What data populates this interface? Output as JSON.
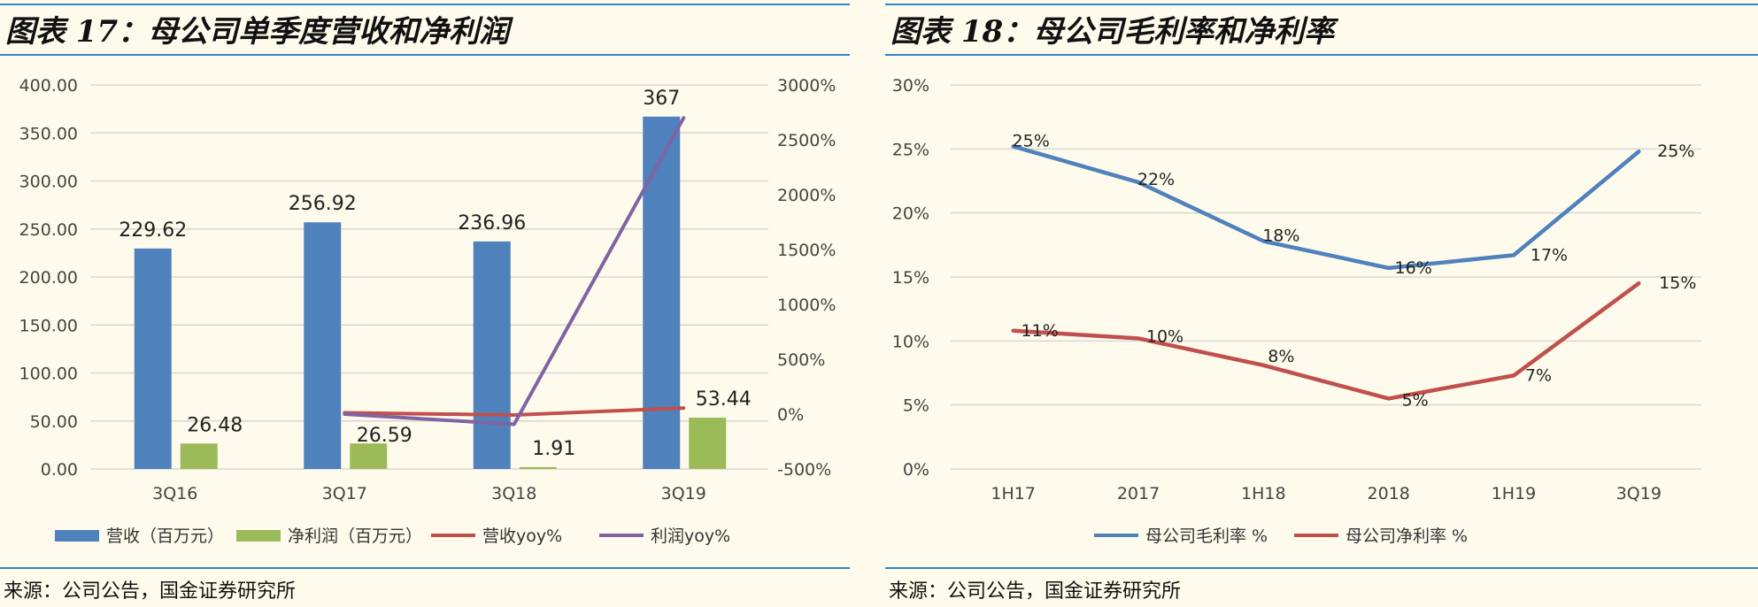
{
  "chart_data": [
    {
      "type": "bar",
      "title": "图表 17：母公司单季度营收和净利润",
      "source": "来源：公司公告，国金证券研究所",
      "categories": [
        "3Q16",
        "3Q17",
        "3Q18",
        "3Q19"
      ],
      "y_left": {
        "min": 0,
        "max": 400,
        "step": 50,
        "ticks": [
          "0.00",
          "50.00",
          "100.00",
          "150.00",
          "200.00",
          "250.00",
          "300.00",
          "350.00",
          "400.00"
        ]
      },
      "y_right": {
        "min": -500,
        "max": 3000,
        "step": 500,
        "ticks": [
          "-500%",
          "0%",
          "500%",
          "1000%",
          "1500%",
          "2000%",
          "2500%",
          "3000%"
        ]
      },
      "grid": true,
      "legend_position": "bottom",
      "series": [
        {
          "name": "营收（百万元）",
          "type": "bar",
          "axis": "left",
          "color": "#4f81bd",
          "values": [
            229.62,
            256.92,
            236.96,
            367
          ],
          "labels": [
            "229.62",
            "256.92",
            "236.96",
            "367"
          ]
        },
        {
          "name": "净利润（百万元）",
          "type": "bar",
          "axis": "left",
          "color": "#9bbb59",
          "values": [
            26.48,
            26.59,
            1.91,
            53.44
          ],
          "labels": [
            "26.48",
            "26.59",
            "1.91",
            "53.44"
          ]
        },
        {
          "name": "营收yoy%",
          "type": "line",
          "axis": "right",
          "color": "#c0504d",
          "values": [
            null,
            12,
            -8,
            55
          ]
        },
        {
          "name": "利润yoy%",
          "type": "line",
          "axis": "right",
          "color": "#8064a2",
          "values": [
            null,
            0.4,
            -93,
            2700
          ]
        }
      ]
    },
    {
      "type": "line",
      "title": "图表 18：母公司毛利率和净利率",
      "source": "来源：公司公告，国金证券研究所",
      "categories": [
        "1H17",
        "2017",
        "1H18",
        "2018",
        "1H19",
        "3Q19"
      ],
      "y": {
        "min": 0,
        "max": 30,
        "step": 5,
        "ticks": [
          "0%",
          "5%",
          "10%",
          "15%",
          "20%",
          "25%",
          "30%"
        ]
      },
      "grid": true,
      "legend_position": "bottom",
      "series": [
        {
          "name": "母公司毛利率 %",
          "color": "#4f81bd",
          "values": [
            25.2,
            22.4,
            17.8,
            15.7,
            16.7,
            24.8
          ],
          "labels": [
            "25%",
            "22%",
            "18%",
            "16%",
            "17%",
            "25%"
          ]
        },
        {
          "name": "母公司净利率 %",
          "color": "#c0504d",
          "values": [
            10.8,
            10.2,
            8.1,
            5.5,
            7.3,
            14.5
          ],
          "labels": [
            "11%",
            "10%",
            "8%",
            "5%",
            "7%",
            "15%"
          ]
        }
      ]
    }
  ]
}
